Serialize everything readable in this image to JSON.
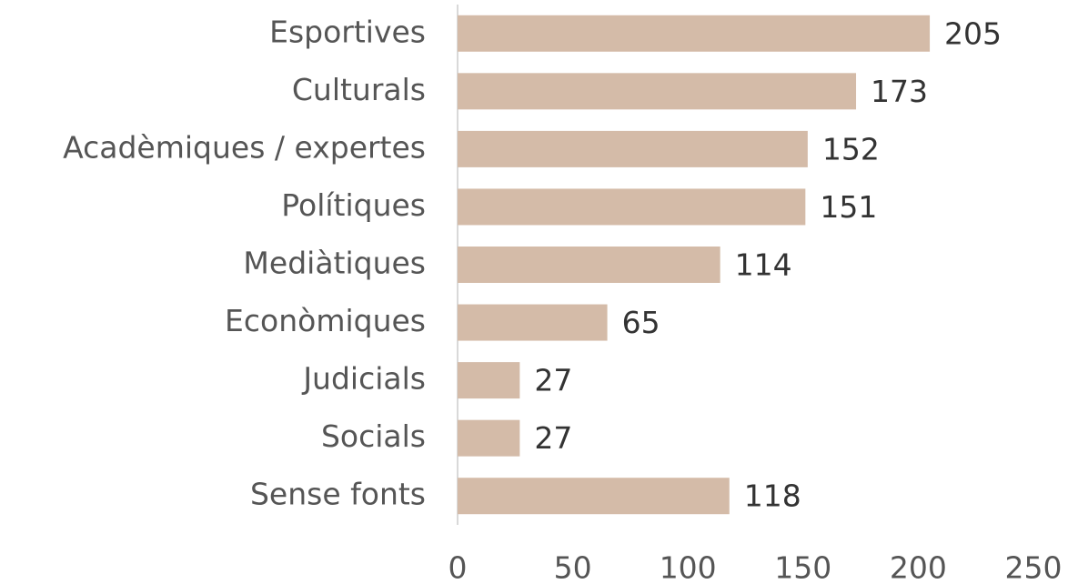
{
  "chart_data": {
    "type": "bar",
    "orientation": "horizontal",
    "categories": [
      "Esportives",
      "Culturals",
      "Acadèmiques / expertes",
      "Polítiques",
      "Mediàtiques",
      "Econòmiques",
      "Judicials",
      "Socials",
      "Sense fonts"
    ],
    "values": [
      205,
      173,
      152,
      151,
      114,
      65,
      27,
      27,
      118
    ],
    "color": "#d4bba8",
    "xlim": [
      0,
      250
    ],
    "xticks": [
      0,
      50,
      100,
      150,
      200,
      250
    ],
    "grid": false
  }
}
